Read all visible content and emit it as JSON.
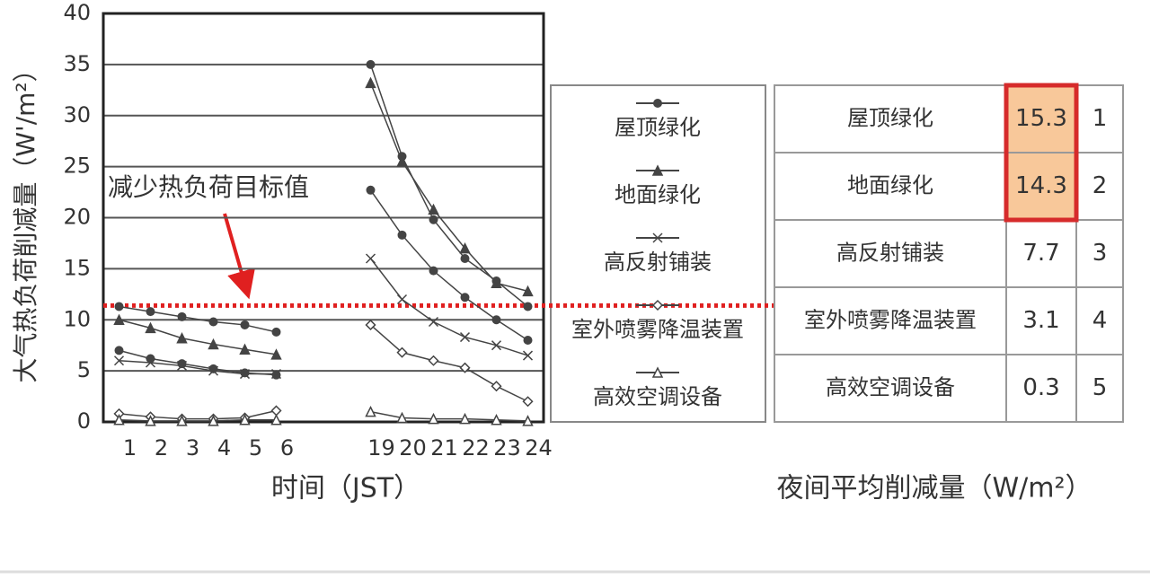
{
  "chart_data": {
    "type": "line",
    "ylabel": "大气热负荷削减量（W'/m²）",
    "xlabel": "时间（JST）",
    "categories": [
      "1",
      "2",
      "3",
      "4",
      "5",
      "6",
      null,
      null,
      "19",
      "20",
      "21",
      "22",
      "23",
      "24"
    ],
    "ylim": [
      0,
      40
    ],
    "yticks": [
      0,
      5,
      10,
      15,
      20,
      25,
      30,
      35,
      40
    ],
    "grid": true,
    "target": 11.4,
    "target_color": "#e02020",
    "annotation": "减少热负荷目标值",
    "series": [
      {
        "name": "屋顶绿化",
        "marker": "circle-filled",
        "color": "#444444",
        "values": [
          11.3,
          10.8,
          10.3,
          9.8,
          9.5,
          8.8,
          null,
          null,
          35,
          26,
          19.8,
          16,
          13.8,
          11.3
        ]
      },
      {
        "name": "地面绿化",
        "marker": "triangle-filled",
        "color": "#444444",
        "values": [
          10,
          9.2,
          8.2,
          7.6,
          7.1,
          6.6,
          null,
          null,
          33.2,
          25.5,
          20.8,
          17,
          13.6,
          12.8
        ]
      },
      {
        "marker": "circle-filled",
        "color": "#444444",
        "values": [
          7,
          6.2,
          5.7,
          5.2,
          4.8,
          4.6,
          null,
          null,
          22.7,
          18.3,
          14.8,
          12.2,
          10,
          8
        ]
      },
      {
        "name": "高反射铺装",
        "marker": "x",
        "color": "#444444",
        "values": [
          6,
          5.8,
          5.5,
          5,
          4.7,
          4.7,
          null,
          null,
          16,
          12,
          9.8,
          8.3,
          7.5,
          6.5
        ]
      },
      {
        "name": "室外喷雾降温装置",
        "marker": "diamond-open",
        "color": "#444444",
        "values": [
          0.8,
          0.5,
          0.3,
          0.3,
          0.4,
          1.1,
          null,
          null,
          9.5,
          6.8,
          6,
          5.3,
          3.5,
          2
        ]
      },
      {
        "name": "高效空调设备",
        "marker": "triangle-open",
        "color": "#444444",
        "values": [
          0.2,
          0.1,
          0.1,
          0.1,
          0.2,
          0.2,
          null,
          null,
          1,
          0.4,
          0.3,
          0.3,
          0.2,
          0.1
        ]
      }
    ]
  },
  "table": {
    "title": "夜间平均削减量（W/m²）",
    "highlight_color": "#f8c89a",
    "highlight_border": "#d62b2b",
    "highlighted_rows": [
      0,
      1
    ],
    "rows": [
      [
        "屋顶绿化",
        15.3,
        1
      ],
      [
        "地面绿化",
        14.3,
        2
      ],
      [
        "高反射铺装",
        7.7,
        3
      ],
      [
        "室外喷雾降温装置",
        3.1,
        4
      ],
      [
        "高效空调设备",
        0.3,
        5
      ]
    ]
  }
}
